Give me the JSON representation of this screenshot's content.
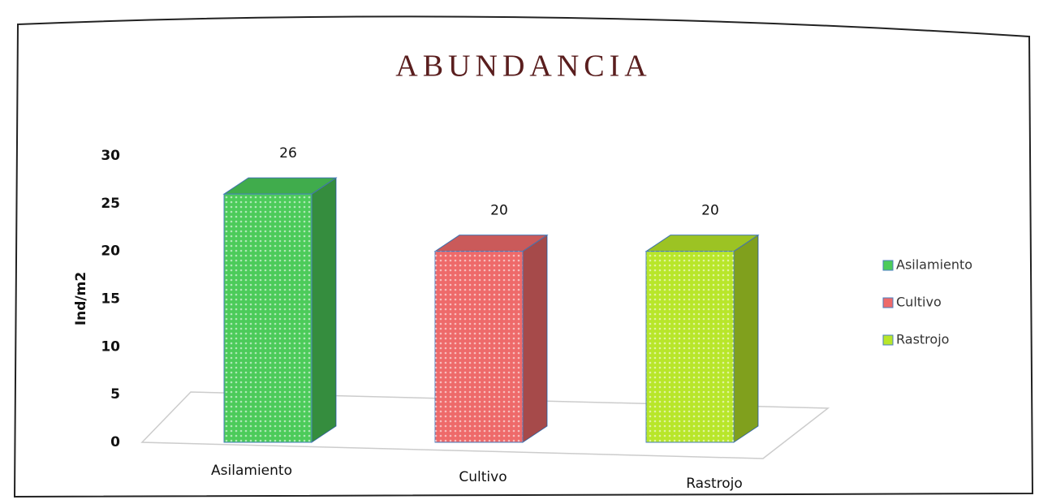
{
  "chart_data": {
    "type": "bar",
    "title": "ABUNDANCIA",
    "ylabel": "Ind/m2",
    "categories": [
      "Asilamiento",
      "Cultivo",
      "Rastrojo"
    ],
    "values": [
      26,
      20,
      20
    ],
    "colors": [
      "#4ccb5a",
      "#ee6a6a",
      "#b8e62a"
    ],
    "ylim": [
      0,
      30
    ],
    "yticks": [
      0,
      5,
      10,
      15,
      20,
      25,
      30
    ],
    "grid": false,
    "legend": "right"
  }
}
